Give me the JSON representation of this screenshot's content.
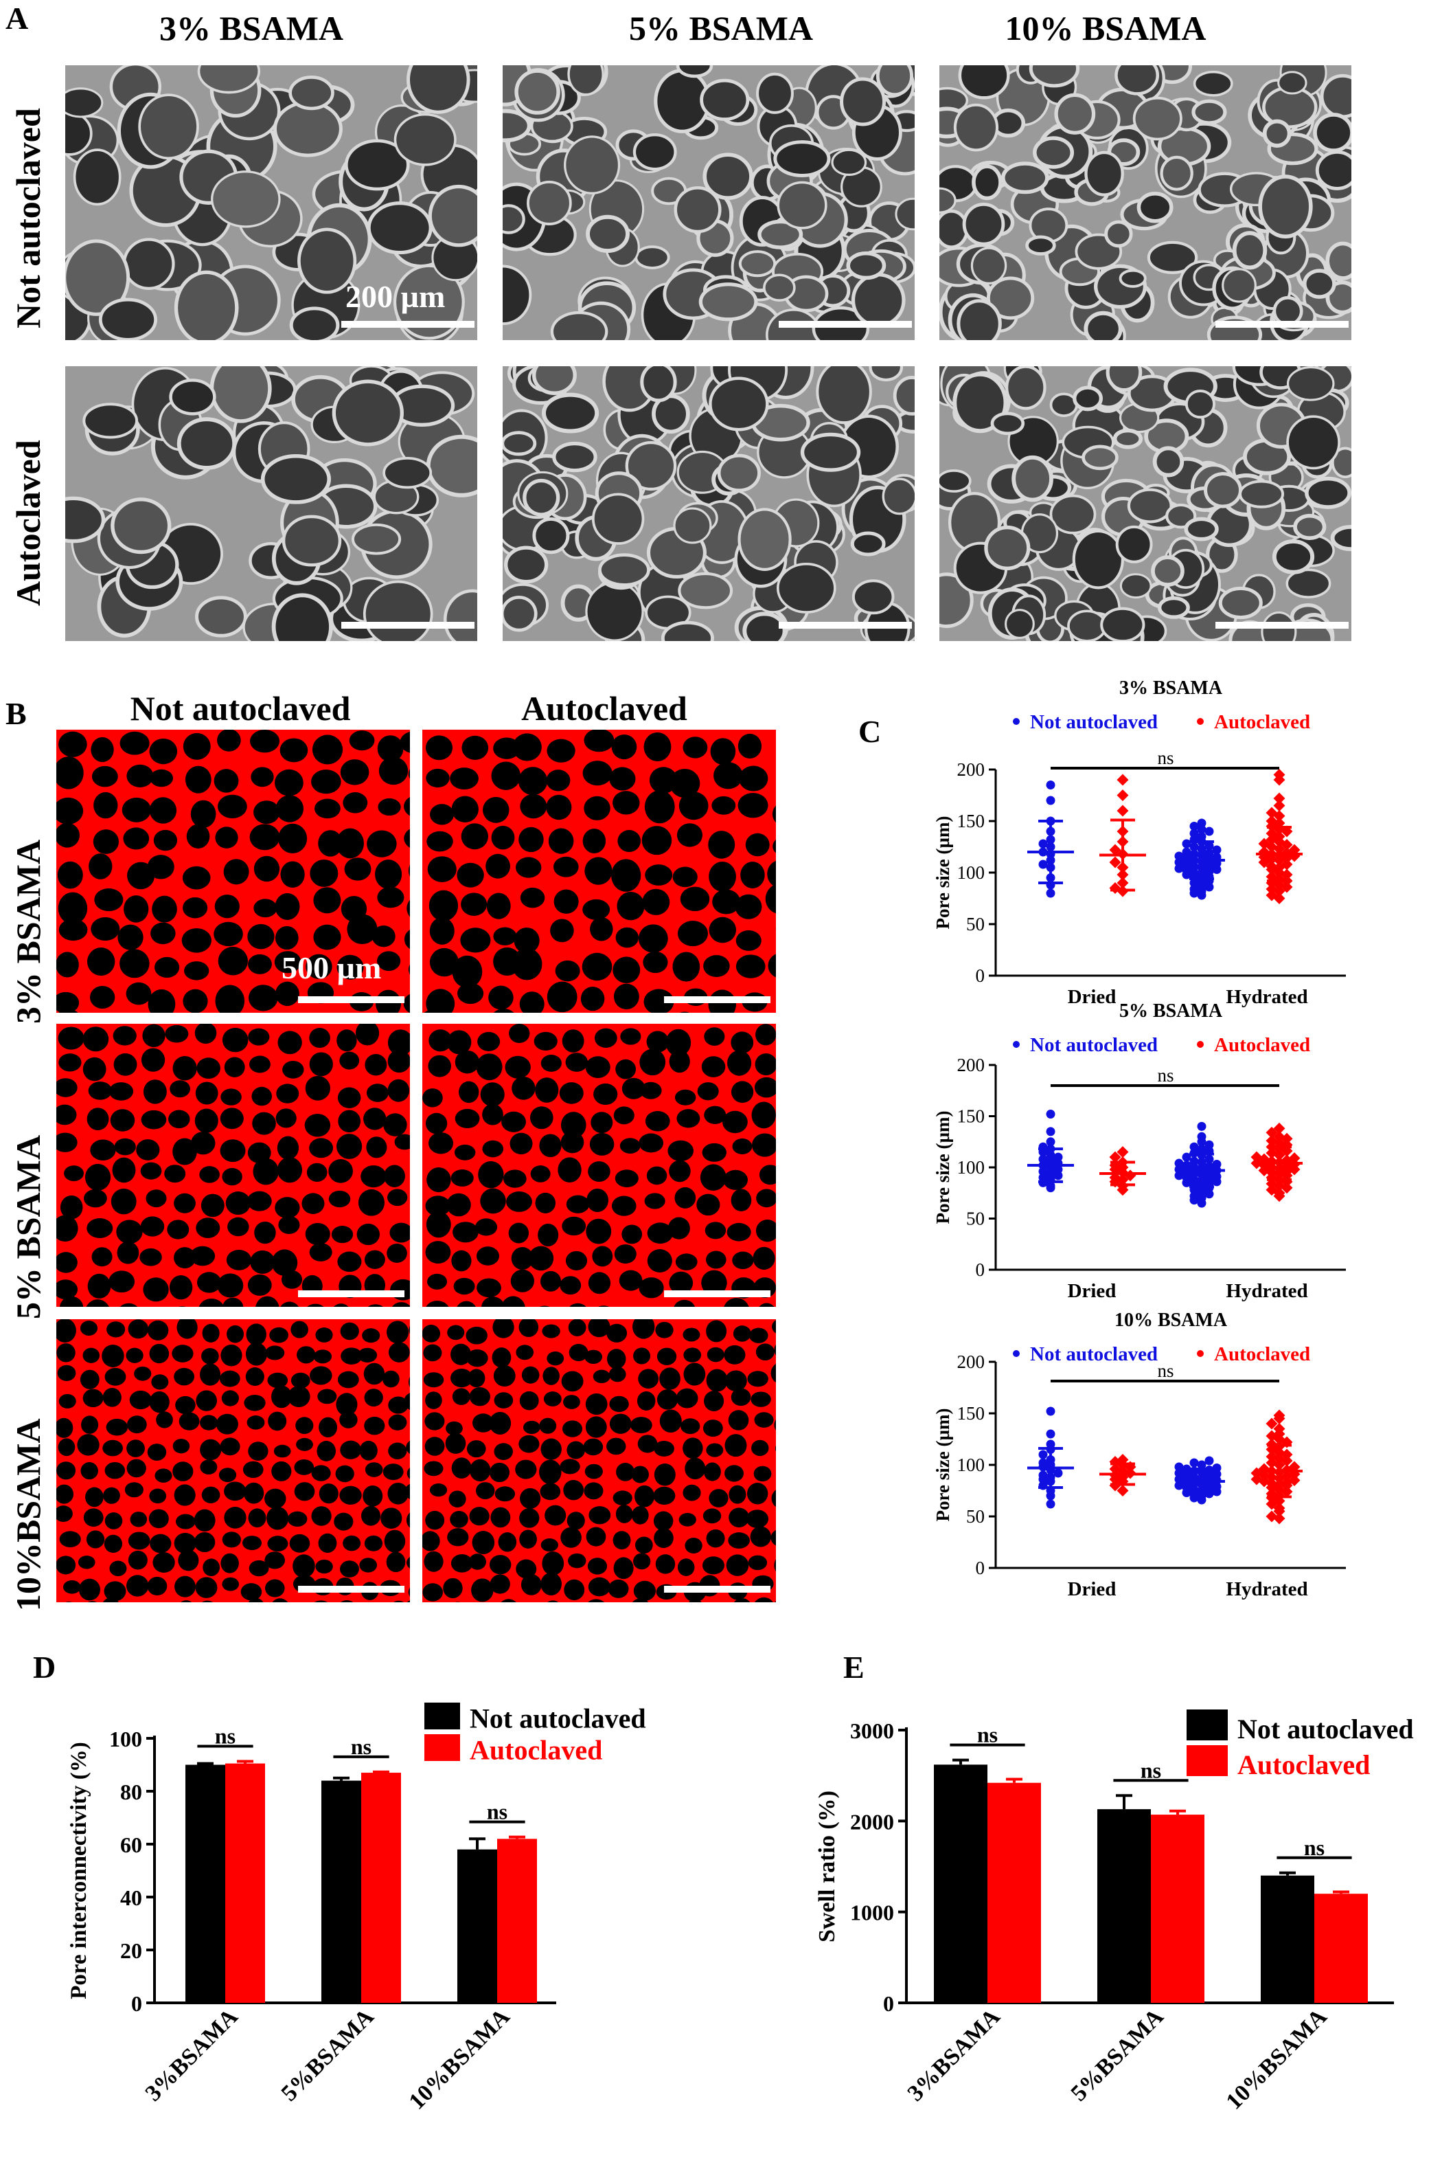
{
  "panels": {
    "A": {
      "letter": "A",
      "columns": [
        "3% BSAMA",
        "5% BSAMA",
        "10% BSAMA"
      ],
      "rows": [
        "Not autoclaved",
        "Autoclaved"
      ],
      "scale_label": "200 µm"
    },
    "B": {
      "letter": "B",
      "columns": [
        "Not autoclaved",
        "Autoclaved"
      ],
      "rows": [
        "3% BSAMA",
        "5% BSAMA",
        "10%BSAMA"
      ],
      "scale_label": "500 µm",
      "stain_color": "#ff0000"
    },
    "C": {
      "letter": "C"
    },
    "D": {
      "letter": "D"
    },
    "E": {
      "letter": "E"
    }
  },
  "colors": {
    "not_autoclaved_dots": "#1010e0",
    "autoclaved_dots": "#ff0000",
    "bar_black": "#000000",
    "bar_red": "#ff0000"
  },
  "chart_data": [
    {
      "id": "C1",
      "type": "scatter",
      "title": "3% BSAMA",
      "ylabel": "Pore size (µm)",
      "ylim": [
        0,
        200
      ],
      "yticks": [
        0,
        50,
        100,
        150,
        200
      ],
      "categories": [
        "Dried",
        "Hydrated"
      ],
      "legend": [
        "Not autoclaved",
        "Autoclaved"
      ],
      "significance": "ns",
      "groups": [
        {
          "category": "Dried",
          "series": "Not autoclaved",
          "mean": 120,
          "sd": 30,
          "points": [
            185,
            170,
            150,
            140,
            132,
            128,
            125,
            120,
            118,
            112,
            108,
            105,
            95,
            88,
            80
          ]
        },
        {
          "category": "Dried",
          "series": "Autoclaved",
          "mean": 117,
          "sd": 34,
          "points": [
            190,
            175,
            160,
            140,
            130,
            122,
            118,
            110,
            105,
            98,
            90,
            85,
            82
          ]
        },
        {
          "category": "Hydrated",
          "series": "Not autoclaved",
          "mean": 112,
          "sd": 18,
          "points": [
            148,
            145,
            142,
            140,
            138,
            135,
            132,
            130,
            128,
            126,
            125,
            123,
            122,
            120,
            119,
            118,
            117,
            116,
            115,
            114,
            113,
            112,
            111,
            110,
            109,
            108,
            107,
            106,
            105,
            104,
            103,
            102,
            101,
            100,
            99,
            98,
            96,
            95,
            93,
            92,
            90,
            88,
            86,
            84,
            82,
            80,
            78
          ]
        },
        {
          "category": "Hydrated",
          "series": "Autoclaved",
          "mean": 118,
          "sd": 26,
          "points": [
            195,
            190,
            172,
            165,
            158,
            155,
            150,
            148,
            145,
            142,
            140,
            138,
            135,
            132,
            130,
            128,
            127,
            125,
            123,
            122,
            120,
            119,
            118,
            117,
            116,
            115,
            114,
            113,
            112,
            110,
            108,
            106,
            105,
            103,
            100,
            98,
            96,
            94,
            92,
            90,
            88,
            86,
            84,
            82,
            78,
            75
          ]
        }
      ]
    },
    {
      "id": "C2",
      "type": "scatter",
      "title": "5% BSAMA",
      "ylabel": "Pore size (µm)",
      "ylim": [
        0,
        200
      ],
      "yticks": [
        0,
        50,
        100,
        150,
        200
      ],
      "categories": [
        "Dried",
        "Hydrated"
      ],
      "legend": [
        "Not autoclaved",
        "Autoclaved"
      ],
      "significance": "ns",
      "groups": [
        {
          "category": "Dried",
          "series": "Not autoclaved",
          "mean": 102,
          "sd": 16,
          "points": [
            152,
            135,
            125,
            120,
            118,
            115,
            112,
            110,
            108,
            106,
            104,
            102,
            100,
            98,
            96,
            94,
            92,
            90,
            88,
            85,
            82,
            80
          ]
        },
        {
          "category": "Dried",
          "series": "Autoclaved",
          "mean": 94,
          "sd": 11,
          "points": [
            115,
            110,
            105,
            102,
            100,
            98,
            95,
            92,
            90,
            88,
            86,
            82,
            78
          ]
        },
        {
          "category": "Hydrated",
          "series": "Not autoclaved",
          "mean": 97,
          "sd": 16,
          "points": [
            140,
            130,
            125,
            122,
            120,
            118,
            116,
            114,
            112,
            110,
            108,
            106,
            105,
            104,
            103,
            102,
            101,
            100,
            99,
            98,
            97,
            96,
            95,
            94,
            93,
            92,
            91,
            90,
            89,
            88,
            87,
            86,
            85,
            84,
            83,
            82,
            80,
            78,
            76,
            74,
            72,
            70,
            68,
            65
          ]
        },
        {
          "category": "Hydrated",
          "series": "Autoclaved",
          "mean": 104,
          "sd": 16,
          "points": [
            138,
            134,
            130,
            128,
            126,
            124,
            122,
            120,
            118,
            116,
            114,
            112,
            110,
            109,
            108,
            107,
            106,
            105,
            104,
            103,
            102,
            101,
            100,
            99,
            98,
            97,
            96,
            95,
            94,
            92,
            90,
            88,
            86,
            84,
            82,
            80,
            78,
            75,
            72
          ]
        }
      ]
    },
    {
      "id": "C3",
      "type": "scatter",
      "title": "10% BSAMA",
      "ylabel": "Pore size (µm)",
      "ylim": [
        0,
        200
      ],
      "yticks": [
        0,
        50,
        100,
        150,
        200
      ],
      "categories": [
        "Dried",
        "Hydrated"
      ],
      "legend": [
        "Not autoclaved",
        "Autoclaved"
      ],
      "significance": "ns",
      "groups": [
        {
          "category": "Dried",
          "series": "Not autoclaved",
          "mean": 97,
          "sd": 19,
          "points": [
            152,
            130,
            120,
            115,
            110,
            105,
            102,
            100,
            98,
            95,
            92,
            90,
            88,
            86,
            84,
            80,
            75,
            70,
            62
          ]
        },
        {
          "category": "Dried",
          "series": "Autoclaved",
          "mean": 91,
          "sd": 10,
          "points": [
            105,
            103,
            100,
            98,
            96,
            94,
            92,
            90,
            88,
            86,
            84,
            80,
            75
          ]
        },
        {
          "category": "Hydrated",
          "series": "Not autoclaved",
          "mean": 84,
          "sd": 12,
          "points": [
            104,
            102,
            100,
            98,
            97,
            96,
            95,
            94,
            93,
            92,
            91,
            90,
            89,
            88,
            87,
            86,
            85,
            84,
            83,
            82,
            81,
            80,
            79,
            78,
            77,
            76,
            75,
            74,
            73,
            72,
            71,
            70,
            68,
            66
          ]
        },
        {
          "category": "Hydrated",
          "series": "Autoclaved",
          "mean": 94,
          "sd": 25,
          "points": [
            148,
            145,
            140,
            135,
            130,
            128,
            125,
            122,
            120,
            118,
            115,
            112,
            110,
            108,
            106,
            104,
            102,
            100,
            98,
            96,
            95,
            94,
            93,
            92,
            91,
            90,
            89,
            88,
            87,
            86,
            85,
            84,
            83,
            82,
            81,
            80,
            78,
            76,
            74,
            72,
            70,
            68,
            65,
            62,
            58,
            55,
            50,
            48
          ]
        }
      ]
    },
    {
      "id": "D",
      "type": "bar",
      "ylabel": "Pore interconnectivity (%)",
      "ylim": [
        0,
        100
      ],
      "yticks": [
        0,
        20,
        40,
        60,
        80,
        100
      ],
      "categories": [
        "3%BSAMA",
        "5%BSAMA",
        "10%BSAMA"
      ],
      "series": [
        {
          "name": "Not autoclaved",
          "values": [
            90,
            84,
            58
          ],
          "errors": [
            0.5,
            1,
            4
          ]
        },
        {
          "name": "Autoclaved",
          "values": [
            90.5,
            87,
            62
          ],
          "errors": [
            0.8,
            0.3,
            0.7
          ]
        }
      ],
      "significance": [
        "ns",
        "ns",
        "ns"
      ]
    },
    {
      "id": "E",
      "type": "bar",
      "ylabel": "Swell ratio (%)",
      "ylim": [
        0,
        3000
      ],
      "yticks": [
        0,
        1000,
        2000,
        3000
      ],
      "categories": [
        "3%BSAMA",
        "5%BSAMA",
        "10%BSAMA"
      ],
      "series": [
        {
          "name": "Not autoclaved",
          "values": [
            2620,
            2130,
            1400
          ],
          "errors": [
            50,
            150,
            30
          ]
        },
        {
          "name": "Autoclaved",
          "values": [
            2420,
            2070,
            1200
          ],
          "errors": [
            40,
            40,
            20
          ]
        }
      ],
      "significance": [
        "ns",
        "ns",
        "ns"
      ]
    }
  ]
}
